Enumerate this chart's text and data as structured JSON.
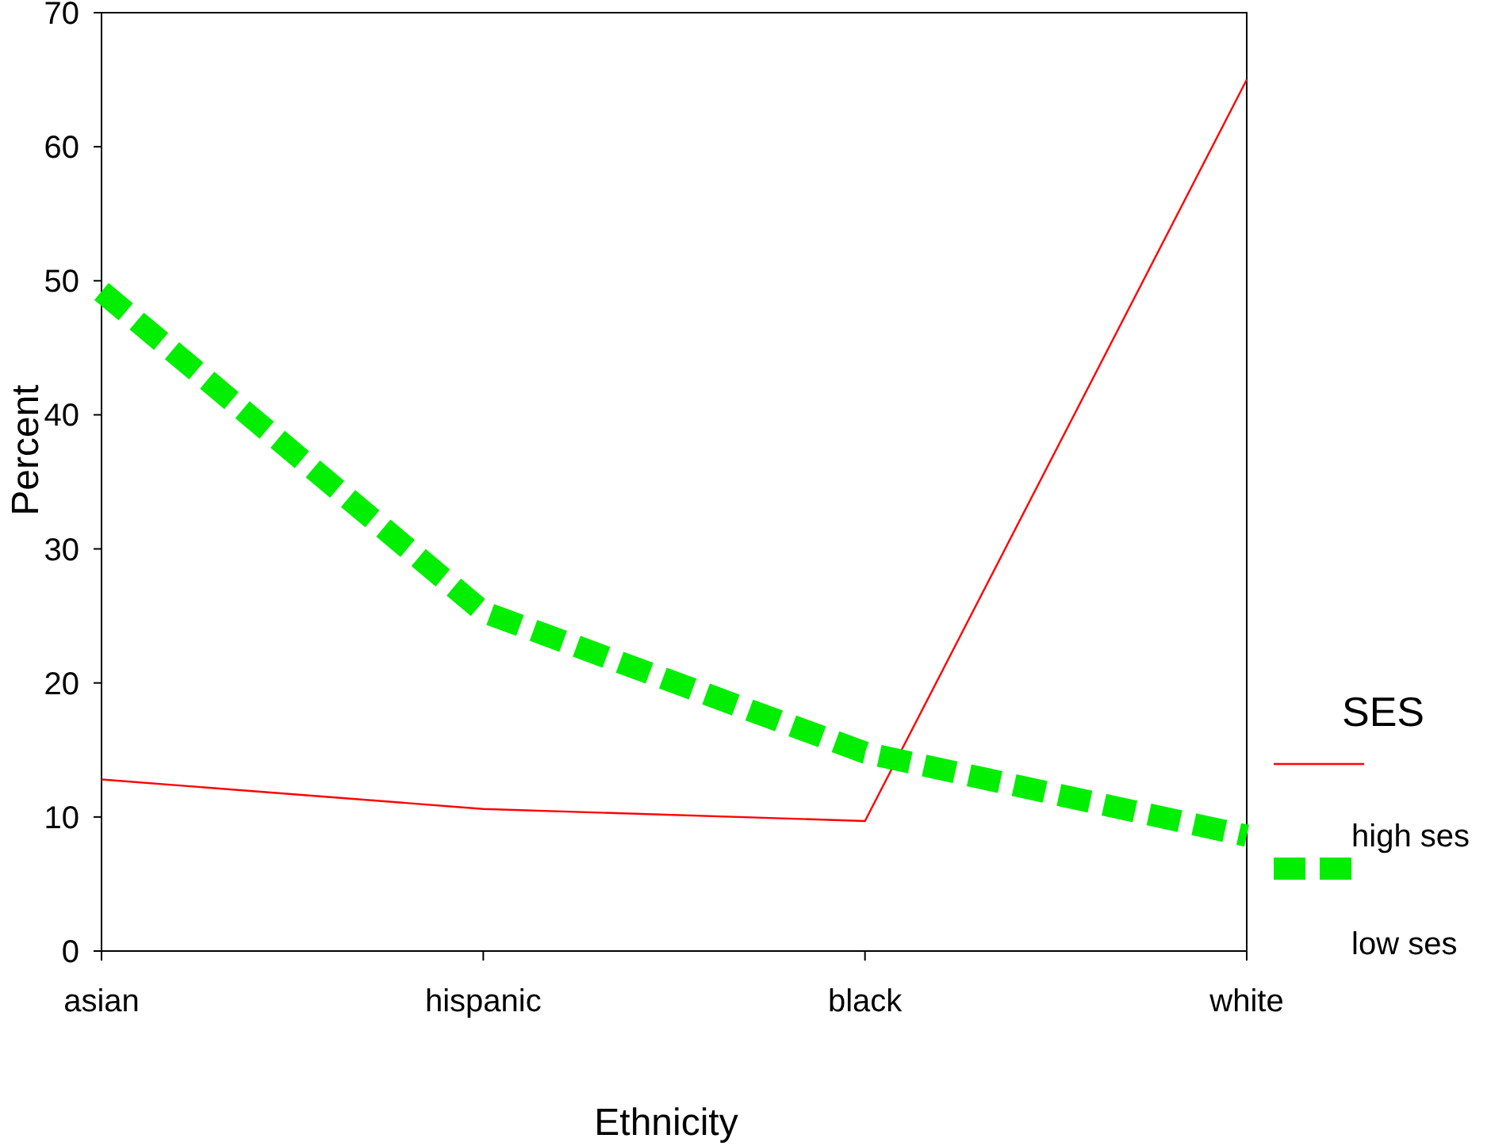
{
  "chart_data": {
    "type": "line",
    "xlabel": "Ethnicity",
    "ylabel": "Percent",
    "legend_title": "SES",
    "legend": "right",
    "categories": [
      "asian",
      "hispanic",
      "black",
      "white"
    ],
    "ylim": [
      0,
      70
    ],
    "yticks": [
      0,
      10,
      20,
      30,
      40,
      50,
      60,
      70
    ],
    "grid": false,
    "marker": "none",
    "series": [
      {
        "name": "high ses",
        "color": "#ff0000",
        "line_style": "solid",
        "values": [
          12.8,
          10.6,
          9.7,
          65.0
        ]
      },
      {
        "name": "low ses",
        "color": "#00ee00",
        "line_style": "dashed",
        "values": [
          49.2,
          25.3,
          14.8,
          8.6
        ]
      }
    ]
  }
}
